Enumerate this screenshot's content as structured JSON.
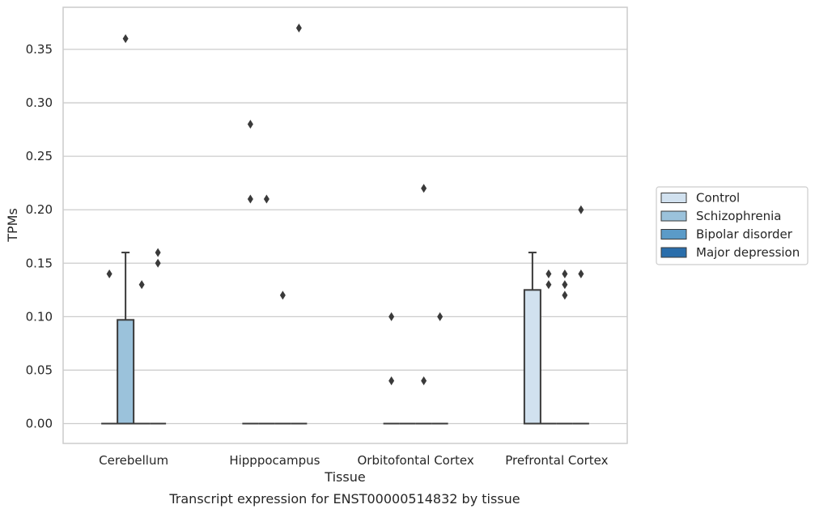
{
  "caption": "Transcript expression for ENST00000514832 by tissue",
  "colors": {
    "Control": "#d1e1ef",
    "Schizophrenia": "#9bc2db",
    "Bipolar disorder": "#5b9bc8",
    "Major depression": "#2a6eab",
    "line": "#3a3a3a",
    "grid": "#cccccc",
    "frame": "#cccccc"
  },
  "chart_data": {
    "type": "box",
    "xlabel": "Tissue",
    "ylabel": "TPMs",
    "ylim": [
      -0.018,
      0.39
    ],
    "yticks": [
      0.0,
      0.05,
      0.1,
      0.15,
      0.2,
      0.25,
      0.3,
      0.35
    ],
    "ytick_labels": [
      "0.00",
      "0.05",
      "0.10",
      "0.15",
      "0.20",
      "0.25",
      "0.30",
      "0.35"
    ],
    "grid": "horizontal",
    "legend_position": "right",
    "categories": [
      "Cerebellum",
      "Hipppocampus",
      "Orbitofontal Cortex",
      "Prefrontal Cortex"
    ],
    "series": [
      {
        "name": "Control",
        "boxes": [
          {
            "q1": 0,
            "median": 0,
            "q3": 0,
            "whisker_low": 0,
            "whisker_high": 0,
            "outliers": [
              0.14
            ]
          },
          {
            "q1": 0,
            "median": 0,
            "q3": 0,
            "whisker_low": 0,
            "whisker_high": 0,
            "outliers": [
              0.28,
              0.21
            ]
          },
          {
            "q1": 0,
            "median": 0,
            "q3": 0,
            "whisker_low": 0,
            "whisker_high": 0,
            "outliers": [
              0.1,
              0.04
            ]
          },
          {
            "q1": 0,
            "median": 0,
            "q3": 0.125,
            "whisker_low": 0,
            "whisker_high": 0.16,
            "outliers": []
          }
        ]
      },
      {
        "name": "Schizophrenia",
        "boxes": [
          {
            "q1": 0,
            "median": 0,
            "q3": 0.097,
            "whisker_low": 0,
            "whisker_high": 0.16,
            "outliers": [
              0.36
            ]
          },
          {
            "q1": 0,
            "median": 0,
            "q3": 0,
            "whisker_low": 0,
            "whisker_high": 0,
            "outliers": [
              0.21
            ]
          },
          {
            "q1": 0,
            "median": 0,
            "q3": 0,
            "whisker_low": 0,
            "whisker_high": 0,
            "outliers": []
          },
          {
            "q1": 0,
            "median": 0,
            "q3": 0,
            "whisker_low": 0,
            "whisker_high": 0,
            "outliers": [
              0.14,
              0.13
            ]
          }
        ]
      },
      {
        "name": "Bipolar disorder",
        "boxes": [
          {
            "q1": 0,
            "median": 0,
            "q3": 0,
            "whisker_low": 0,
            "whisker_high": 0,
            "outliers": [
              0.13
            ]
          },
          {
            "q1": 0,
            "median": 0,
            "q3": 0,
            "whisker_low": 0,
            "whisker_high": 0,
            "outliers": [
              0.12
            ]
          },
          {
            "q1": 0,
            "median": 0,
            "q3": 0,
            "whisker_low": 0,
            "whisker_high": 0,
            "outliers": [
              0.22,
              0.04
            ]
          },
          {
            "q1": 0,
            "median": 0,
            "q3": 0,
            "whisker_low": 0,
            "whisker_high": 0,
            "outliers": [
              0.14,
              0.13,
              0.12
            ]
          }
        ]
      },
      {
        "name": "Major depression",
        "boxes": [
          {
            "q1": 0,
            "median": 0,
            "q3": 0,
            "whisker_low": 0,
            "whisker_high": 0,
            "outliers": [
              0.16,
              0.15
            ]
          },
          {
            "q1": 0,
            "median": 0,
            "q3": 0,
            "whisker_low": 0,
            "whisker_high": 0,
            "outliers": [
              0.37
            ]
          },
          {
            "q1": 0,
            "median": 0,
            "q3": 0,
            "whisker_low": 0,
            "whisker_high": 0,
            "outliers": [
              0.1
            ]
          },
          {
            "q1": 0,
            "median": 0,
            "q3": 0,
            "whisker_low": 0,
            "whisker_high": 0,
            "outliers": [
              0.2,
              0.14
            ]
          }
        ]
      }
    ]
  }
}
